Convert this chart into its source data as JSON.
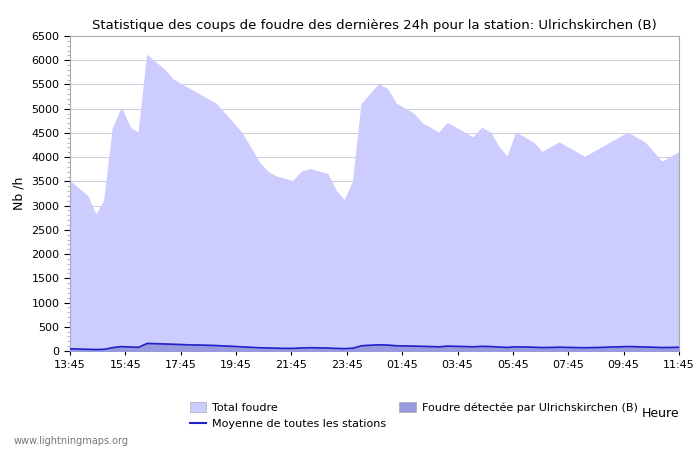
{
  "title": "Statistique des coups de foudre des dernières 24h pour la station: Ulrichskirchen (B)",
  "xlabel": "Heure",
  "ylabel": "Nb /h",
  "ylim": [
    0,
    6500
  ],
  "yticks": [
    0,
    500,
    1000,
    1500,
    2000,
    2500,
    3000,
    3500,
    4000,
    4500,
    5000,
    5500,
    6000,
    6500
  ],
  "xtick_labels": [
    "13:45",
    "15:45",
    "17:45",
    "19:45",
    "21:45",
    "23:45",
    "01:45",
    "03:45",
    "05:45",
    "07:45",
    "09:45",
    "11:45"
  ],
  "bg_color": "#eeeeff",
  "plot_bg_color": "#ffffff",
  "grid_color": "#ccccdd",
  "total_foudre_color": "#ccccff",
  "detected_color": "#9999dd",
  "mean_color": "#2222cc",
  "watermark": "www.lightningmaps.org",
  "total_foudre": [
    3500,
    3350,
    3200,
    2800,
    3100,
    4600,
    5000,
    4600,
    4500,
    6100,
    5950,
    5800,
    5600,
    5500,
    5400,
    5300,
    5200,
    5100,
    4900,
    4700,
    4500,
    4200,
    3900,
    3700,
    3600,
    3550,
    3500,
    3700,
    3750,
    3700,
    3650,
    3300,
    3100,
    3500,
    5100,
    5300,
    5500,
    5400,
    5100,
    5000,
    4900,
    4700,
    4600,
    4500,
    4700,
    4600,
    4500,
    4400,
    4600,
    4500,
    4200,
    4000,
    4500,
    4400,
    4300,
    4100,
    4200,
    4300,
    4200,
    4100,
    4000,
    4100,
    4200,
    4300,
    4400,
    4500,
    4400,
    4300,
    4100,
    3900,
    4000,
    4100
  ],
  "local_detected": [
    50,
    45,
    40,
    35,
    40,
    80,
    100,
    90,
    85,
    170,
    165,
    160,
    150,
    145,
    140,
    135,
    130,
    125,
    115,
    105,
    95,
    85,
    75,
    70,
    65,
    60,
    60,
    70,
    75,
    72,
    68,
    60,
    55,
    65,
    120,
    130,
    140,
    135,
    120,
    115,
    110,
    105,
    100,
    95,
    110,
    105,
    100,
    95,
    105,
    100,
    90,
    82,
    95,
    90,
    85,
    78,
    80,
    85,
    82,
    78,
    75,
    78,
    82,
    90,
    95,
    100,
    96,
    90,
    85,
    78,
    80,
    85
  ],
  "mean_line": [
    45,
    40,
    35,
    30,
    35,
    70,
    90,
    82,
    76,
    155,
    150,
    145,
    138,
    132,
    126,
    122,
    118,
    112,
    104,
    95,
    86,
    77,
    68,
    63,
    58,
    54,
    54,
    63,
    68,
    65,
    61,
    54,
    49,
    58,
    108,
    118,
    128,
    122,
    108,
    104,
    100,
    96,
    92,
    86,
    100,
    96,
    92,
    86,
    96,
    92,
    82,
    74,
    86,
    82,
    78,
    71,
    73,
    78,
    74,
    71,
    68,
    71,
    74,
    82,
    86,
    92,
    88,
    82,
    78,
    71,
    73,
    78
  ]
}
